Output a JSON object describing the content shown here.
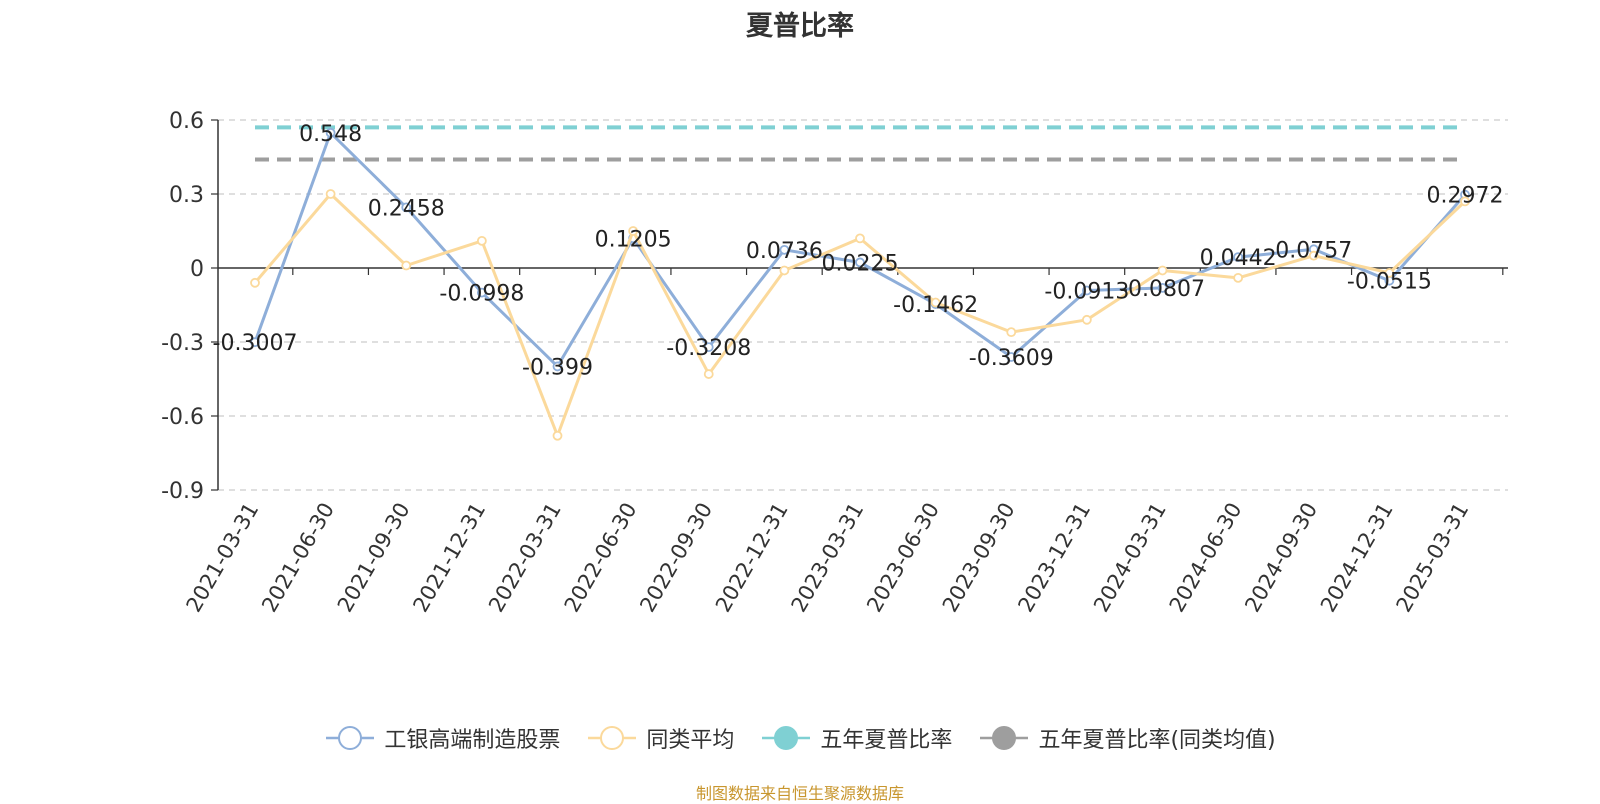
{
  "chart_data": {
    "type": "line",
    "title": "夏普比率",
    "categories": [
      "2021-03-31",
      "2021-06-30",
      "2021-09-30",
      "2021-12-31",
      "2022-03-31",
      "2022-06-30",
      "2022-09-30",
      "2022-12-31",
      "2023-03-31",
      "2023-06-30",
      "2023-09-30",
      "2023-12-31",
      "2024-03-31",
      "2024-06-30",
      "2024-09-30",
      "2024-12-31",
      "2025-03-31"
    ],
    "yticks": [
      "0.6",
      "0.3",
      "0",
      "-0.3",
      "-0.6",
      "-0.9"
    ],
    "ylim": [
      -0.9,
      0.6
    ],
    "grid": true,
    "legend_position": "bottom",
    "series": [
      {
        "name": "工银高端制造股票",
        "color": "#8eaed9",
        "values": [
          -0.3007,
          0.548,
          0.2458,
          -0.0998,
          -0.399,
          0.1205,
          -0.3208,
          0.0736,
          0.0225,
          -0.1462,
          -0.3609,
          -0.0913,
          -0.0807,
          0.0442,
          0.0757,
          -0.0515,
          0.2972
        ],
        "labels": [
          "-0.3007",
          "0.548",
          "0.2458",
          "-0.0998",
          "-0.399",
          "0.1205",
          "-0.3208",
          "0.0736",
          "0.0225",
          "-0.1462",
          "-0.3609",
          "-0.0913",
          "-0.0807",
          "0.0442",
          "0.0757",
          "-0.0515",
          "0.2972"
        ]
      },
      {
        "name": "同类平均",
        "color": "#fbd99b",
        "values": [
          -0.06,
          0.3,
          0.01,
          0.11,
          -0.68,
          0.15,
          -0.43,
          -0.01,
          0.12,
          -0.14,
          -0.26,
          -0.21,
          -0.01,
          -0.04,
          0.05,
          -0.02,
          0.27
        ]
      },
      {
        "name": "五年夏普比率",
        "color": "#7fd0d3",
        "constant": 0.57
      },
      {
        "name": "五年夏普比率(同类均值)",
        "color": "#9e9e9e",
        "constant": 0.44
      }
    ]
  },
  "source_note": "制图数据来自恒生聚源数据库"
}
